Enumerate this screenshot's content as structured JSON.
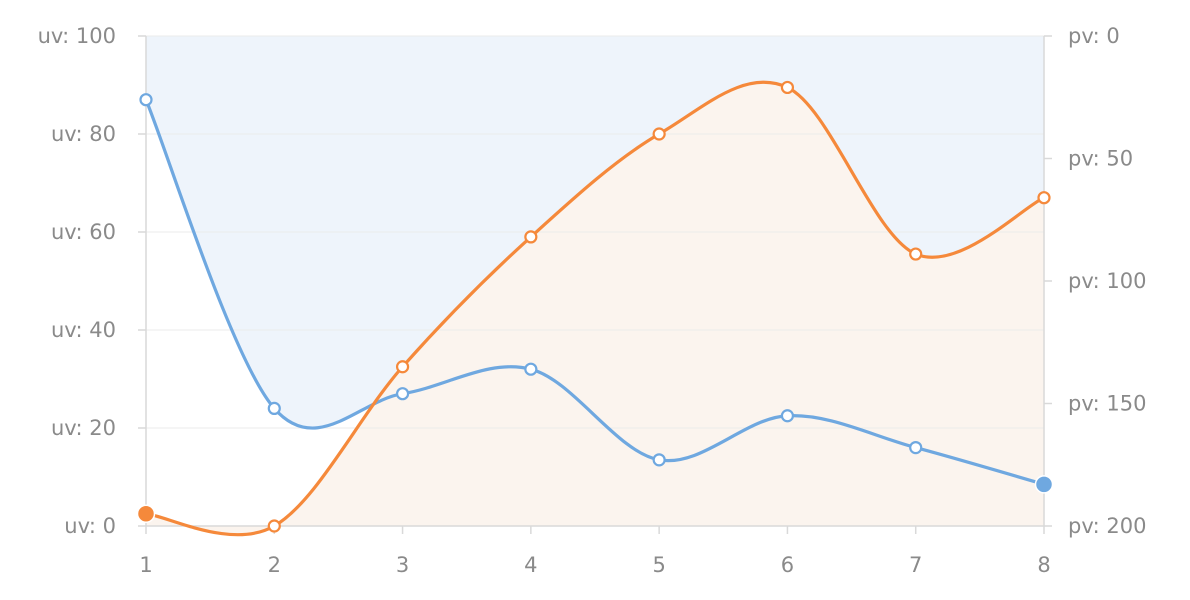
{
  "chart_data": {
    "type": "line",
    "x": [
      1,
      2,
      3,
      4,
      5,
      6,
      7,
      8
    ],
    "xlim": [
      1,
      8
    ],
    "series": [
      {
        "values": [
          87,
          24,
          27,
          32,
          13.5,
          22.5,
          16,
          8.5
        ],
        "axis": "left",
        "color": "#6fa8e0",
        "area_fill": "#eef4fb",
        "area_to": "top",
        "highlighted_point_index": 7
      },
      {
        "values": [
          195,
          200,
          135,
          82,
          40,
          21,
          89,
          66
        ],
        "axis": "right",
        "color": "#f5893b",
        "area_fill": "#fbf4ee",
        "area_to": "bottom",
        "highlighted_point_index": 0
      }
    ],
    "y_left": {
      "range": [
        0,
        100
      ],
      "ticks": [
        0,
        20,
        40,
        60,
        80,
        100
      ],
      "tick_labels": [
        "uv:  0",
        "uv:  20",
        "uv:  40",
        "uv:  60",
        "uv:  80",
        "uv:  100"
      ]
    },
    "y_right": {
      "range": [
        0,
        200
      ],
      "reversed": true,
      "ticks": [
        0,
        50,
        100,
        150,
        200
      ],
      "tick_labels": [
        "pv:  0",
        "pv:  50",
        "pv:  100",
        "pv:  150",
        "pv:  200"
      ]
    },
    "x_tick_labels": [
      "1",
      "2",
      "3",
      "4",
      "5",
      "6",
      "7",
      "8"
    ],
    "grid": true,
    "colors": {
      "axis": "#d9d9d9",
      "grid": "#ebebeb",
      "tick_text": "#8a8a8a"
    }
  }
}
